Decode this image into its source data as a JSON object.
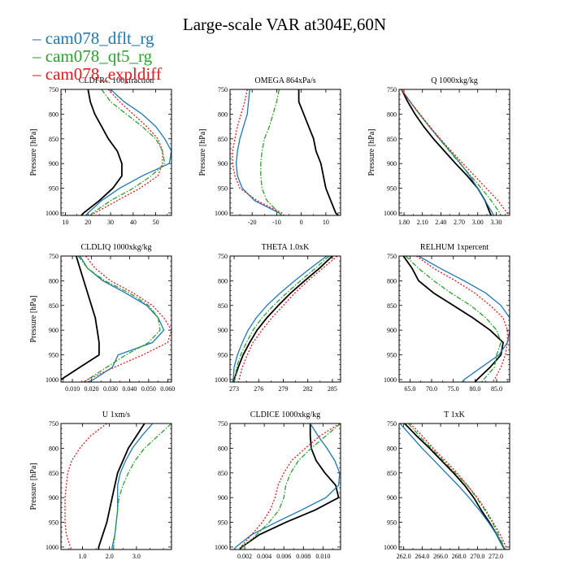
{
  "figure": {
    "title": "Large-scale VAR at304E,60N"
  },
  "legend": [
    {
      "name": "cam078_dflt_rg",
      "color": "#1f77b4",
      "dash": "solid"
    },
    {
      "name": "cam078_qt5_rg",
      "color": "#2ca02c",
      "dash": "dashdot"
    },
    {
      "name": "cam078_expldiff",
      "color": "#e31a1c",
      "dash": "dotted"
    }
  ],
  "colors": {
    "reference": "#000000",
    "cam078_dflt_rg": "#1f77b4",
    "cam078_qt5_rg": "#2ca02c",
    "cam078_expldiff": "#e31a1c"
  },
  "chart_data": [
    {
      "type": "line",
      "title": "CLDFRC 100xfraction",
      "ylabel": "Pressure [hPa]",
      "xlabel": "",
      "xlim": [
        8,
        57
      ],
      "ylim": [
        1005,
        750
      ],
      "yticks": [
        750,
        800,
        850,
        900,
        950,
        1000
      ],
      "xticks": [
        10,
        20,
        30,
        40,
        50
      ],
      "xtick_labels": [
        "10",
        "20",
        "30",
        "40",
        "50"
      ],
      "pressure": [
        750,
        775,
        800,
        825,
        850,
        875,
        900,
        925,
        950,
        975,
        1000,
        1005
      ],
      "series": [
        {
          "name": "",
          "values": [
            20,
            21,
            23,
            26,
            29,
            33,
            35,
            35,
            31,
            25,
            18,
            17
          ]
        },
        {
          "name": "cam078_dflt_rg",
          "values": [
            30,
            36,
            44,
            50,
            54,
            57,
            56,
            44,
            34,
            26,
            20,
            19
          ]
        },
        {
          "name": "cam078_qt5_rg",
          "values": [
            26,
            30,
            37,
            44,
            50,
            53,
            54,
            48,
            40,
            30,
            22,
            21
          ]
        },
        {
          "name": "cam078_expldiff",
          "values": [
            29,
            34,
            40,
            46,
            51,
            53,
            53,
            51,
            43,
            33,
            23,
            21
          ]
        }
      ]
    },
    {
      "type": "line",
      "title": "OMEGA  864xPa/s",
      "ylabel": "Pressure [hPa]",
      "xlabel": "",
      "xlim": [
        -29,
        16
      ],
      "ylim": [
        1005,
        750
      ],
      "yticks": [
        750,
        800,
        850,
        900,
        950,
        1000
      ],
      "xticks": [
        -20,
        -10,
        0,
        10
      ],
      "xtick_labels": [
        "-20",
        "-10",
        "0",
        "10"
      ],
      "pressure": [
        750,
        775,
        800,
        825,
        850,
        875,
        900,
        925,
        950,
        975,
        1000,
        1005
      ],
      "series": [
        {
          "name": "",
          "values": [
            -1,
            -1,
            1,
            3,
            5,
            6,
            8,
            9,
            10,
            12,
            14,
            15
          ]
        },
        {
          "name": "cam078_dflt_rg",
          "values": [
            -21,
            -21.5,
            -22,
            -23.5,
            -25,
            -26,
            -26.5,
            -26,
            -24,
            -19,
            -9,
            -8
          ]
        },
        {
          "name": "cam078_qt5_rg",
          "values": [
            -9,
            -10,
            -11.5,
            -13,
            -15,
            -16,
            -16.5,
            -16.5,
            -16,
            -14,
            -9,
            -8
          ]
        },
        {
          "name": "cam078_expldiff",
          "values": [
            -22,
            -23,
            -24.5,
            -26,
            -27,
            -28,
            -28,
            -27,
            -25,
            -18,
            -8,
            -7
          ]
        }
      ]
    },
    {
      "type": "line",
      "title": "Q  1000xkg/kg",
      "ylabel": "Pressure [hPa]",
      "xlabel": "",
      "xlim": [
        1.72,
        3.52
      ],
      "ylim": [
        1005,
        750
      ],
      "yticks": [
        750,
        800,
        850,
        900,
        950,
        1000
      ],
      "xticks": [
        1.8,
        2.1,
        2.4,
        2.7,
        3.0,
        3.3
      ],
      "xtick_labels": [
        "1.80",
        "2.10",
        "2.40",
        "2.70",
        "3.00",
        "3.30"
      ],
      "pressure": [
        750,
        775,
        800,
        825,
        850,
        875,
        900,
        925,
        950,
        975,
        1000,
        1005
      ],
      "series": [
        {
          "name": "",
          "values": [
            1.76,
            1.86,
            1.98,
            2.12,
            2.28,
            2.46,
            2.64,
            2.83,
            3.0,
            3.12,
            3.2,
            3.22
          ]
        },
        {
          "name": "cam078_dflt_rg",
          "values": [
            1.76,
            1.9,
            2.05,
            2.21,
            2.38,
            2.55,
            2.72,
            2.87,
            3.0,
            3.12,
            3.24,
            3.26
          ]
        },
        {
          "name": "cam078_qt5_rg",
          "values": [
            1.76,
            1.9,
            2.05,
            2.21,
            2.37,
            2.54,
            2.71,
            2.89,
            3.06,
            3.22,
            3.36,
            3.38
          ]
        },
        {
          "name": "cam078_expldiff",
          "values": [
            1.75,
            1.9,
            2.06,
            2.22,
            2.39,
            2.57,
            2.76,
            2.95,
            3.14,
            3.33,
            3.48,
            3.5
          ]
        }
      ]
    },
    {
      "type": "line",
      "title": "CLDLIQ  1000xkg/kg",
      "ylabel": "Pressure [hPa]",
      "xlabel": "",
      "xlim": [
        0.004,
        0.062
      ],
      "ylim": [
        1005,
        750
      ],
      "yticks": [
        750,
        800,
        850,
        900,
        950,
        1000
      ],
      "xticks": [
        0.01,
        0.02,
        0.03,
        0.04,
        0.05,
        0.06
      ],
      "xtick_labels": [
        "0.010",
        "0.020",
        "0.030",
        "0.040",
        "0.050",
        "0.060"
      ],
      "pressure": [
        750,
        775,
        800,
        825,
        850,
        875,
        900,
        925,
        950,
        975,
        1000,
        1005
      ],
      "series": [
        {
          "name": "",
          "values": [
            0.012,
            0.014,
            0.016,
            0.018,
            0.02,
            0.022,
            0.023,
            0.024,
            0.024,
            0.014,
            0.004,
            0.003
          ]
        },
        {
          "name": "cam078_dflt_rg",
          "values": [
            0.014,
            0.018,
            0.026,
            0.038,
            0.049,
            0.055,
            0.058,
            0.052,
            0.034,
            0.031,
            0.021,
            0.018
          ]
        },
        {
          "name": "cam078_qt5_rg",
          "values": [
            0.013,
            0.018,
            0.027,
            0.04,
            0.05,
            0.055,
            0.056,
            0.05,
            0.038,
            0.028,
            0.018,
            0.016
          ]
        },
        {
          "name": "cam078_expldiff",
          "values": [
            0.017,
            0.022,
            0.03,
            0.042,
            0.052,
            0.058,
            0.062,
            0.06,
            0.047,
            0.032,
            0.018,
            0.016
          ]
        }
      ]
    },
    {
      "type": "line",
      "title": "THETA  1.0xK",
      "ylabel": "",
      "xlabel": "",
      "xlim": [
        272.5,
        286
      ],
      "ylim": [
        1005,
        750
      ],
      "yticks": [
        750,
        800,
        850,
        900,
        950,
        1000
      ],
      "xticks": [
        273,
        276,
        279,
        282,
        285
      ],
      "xtick_labels": [
        "273",
        "276",
        "279",
        "282",
        "285"
      ],
      "pressure": [
        750,
        775,
        800,
        825,
        850,
        875,
        900,
        925,
        950,
        975,
        1000,
        1005
      ],
      "series": [
        {
          "name": "",
          "values": [
            285.0,
            283.4,
            281.6,
            279.9,
            278.4,
            277.0,
            275.8,
            274.9,
            274.1,
            273.5,
            273.0,
            272.9
          ]
        },
        {
          "name": "cam078_dflt_rg",
          "values": [
            284.3,
            282.3,
            280.4,
            278.6,
            277.0,
            275.7,
            274.7,
            274.0,
            273.4,
            273.0,
            272.9,
            272.8
          ]
        },
        {
          "name": "cam078_qt5_rg",
          "values": [
            284.6,
            282.9,
            281.1,
            279.4,
            277.8,
            276.4,
            275.3,
            274.5,
            273.8,
            273.3,
            273.1,
            273.0
          ]
        },
        {
          "name": "cam078_expldiff",
          "values": [
            285.6,
            283.8,
            282.0,
            280.4,
            279.0,
            277.6,
            276.4,
            275.3,
            274.6,
            274.0,
            273.6,
            273.5
          ]
        }
      ]
    },
    {
      "type": "line",
      "title": "RELHUM  1xpercent",
      "ylabel": "",
      "xlabel": "",
      "xlim": [
        62.5,
        88
      ],
      "ylim": [
        1005,
        750
      ],
      "yticks": [
        750,
        800,
        850,
        900,
        950,
        1000
      ],
      "xticks": [
        65,
        70,
        75,
        80,
        85
      ],
      "xtick_labels": [
        "65.0",
        "70.0",
        "75.0",
        "80.0",
        "85.0"
      ],
      "pressure": [
        750,
        775,
        800,
        825,
        850,
        875,
        900,
        925,
        950,
        975,
        1000,
        1005
      ],
      "series": [
        {
          "name": "",
          "values": [
            63.5,
            65.5,
            67.0,
            70.5,
            75.0,
            79.5,
            83.5,
            86.5,
            86.0,
            83.5,
            80.5,
            80.0
          ]
        },
        {
          "name": "cam078_dflt_rg",
          "values": [
            67.0,
            72.0,
            77.5,
            82.5,
            86.0,
            88.0,
            88.0,
            87.5,
            85.5,
            81.5,
            77.5,
            77.0
          ]
        },
        {
          "name": "cam078_qt5_rg",
          "values": [
            64.0,
            67.0,
            70.5,
            74.5,
            79.0,
            82.5,
            85.0,
            86.0,
            85.0,
            84.5,
            82.0,
            81.5
          ]
        },
        {
          "name": "cam078_expldiff",
          "values": [
            66.5,
            70.5,
            75.5,
            80.0,
            83.5,
            86.5,
            87.5,
            87.5,
            87.0,
            86.0,
            84.5,
            84.0
          ]
        }
      ]
    },
    {
      "type": "line",
      "title": "U  1xm/s",
      "ylabel": "Pressure [hPa]",
      "xlabel": "",
      "xlim": [
        0.2,
        4.3
      ],
      "ylim": [
        1005,
        750
      ],
      "yticks": [
        750,
        800,
        850,
        900,
        950,
        1000
      ],
      "xticks": [
        1.0,
        2.0,
        3.0
      ],
      "xtick_labels": [
        "1.0",
        "2.0",
        "3.0"
      ],
      "pressure": [
        750,
        775,
        800,
        825,
        850,
        875,
        900,
        925,
        950,
        975,
        1000,
        1005
      ],
      "series": [
        {
          "name": "",
          "values": [
            3.3,
            3.0,
            2.7,
            2.5,
            2.3,
            2.2,
            2.1,
            2.0,
            1.9,
            1.75,
            1.6,
            1.6
          ]
        },
        {
          "name": "cam078_dflt_rg",
          "values": [
            3.6,
            3.2,
            2.85,
            2.6,
            2.4,
            2.3,
            2.3,
            2.3,
            2.25,
            2.2,
            2.1,
            2.1
          ]
        },
        {
          "name": "cam078_qt5_rg",
          "values": [
            4.3,
            3.8,
            3.3,
            2.95,
            2.7,
            2.5,
            2.35,
            2.3,
            2.25,
            2.2,
            2.15,
            2.15
          ]
        },
        {
          "name": "cam078_expldiff",
          "values": [
            1.9,
            1.3,
            0.9,
            0.6,
            0.45,
            0.4,
            0.35,
            0.35,
            0.35,
            0.4,
            0.55,
            0.6
          ]
        }
      ]
    },
    {
      "type": "line",
      "title": "CLDICE  1000xkg/kg",
      "ylabel": "",
      "xlabel": "",
      "xlim": [
        0.0005,
        0.0118
      ],
      "ylim": [
        1005,
        750
      ],
      "yticks": [
        750,
        800,
        850,
        900,
        950,
        1000
      ],
      "xticks": [
        0.002,
        0.004,
        0.006,
        0.008,
        0.01
      ],
      "xtick_labels": [
        "0.002",
        "0.004",
        "0.006",
        "0.008",
        "0.010"
      ],
      "pressure": [
        750,
        775,
        800,
        825,
        850,
        875,
        900,
        925,
        950,
        975,
        1000,
        1005
      ],
      "series": [
        {
          "name": "",
          "values": [
            0.0087,
            0.0087,
            0.0088,
            0.0093,
            0.0102,
            0.0113,
            0.0116,
            0.0092,
            0.0062,
            0.0035,
            0.0017,
            0.0015
          ]
        },
        {
          "name": "cam078_dflt_rg",
          "values": [
            0.0087,
            0.0095,
            0.0104,
            0.0112,
            0.0117,
            0.0116,
            0.0103,
            0.0078,
            0.0052,
            0.0027,
            0.0011,
            0.0009
          ]
        },
        {
          "name": "cam078_qt5_rg",
          "values": [
            0.0118,
            0.0103,
            0.0088,
            0.0075,
            0.0067,
            0.0062,
            0.006,
            0.0055,
            0.0045,
            0.0032,
            0.0018,
            0.0015
          ]
        },
        {
          "name": "cam078_expldiff",
          "values": [
            0.0117,
            0.0097,
            0.0082,
            0.0068,
            0.006,
            0.0054,
            0.0051,
            0.0046,
            0.0038,
            0.0027,
            0.0016,
            0.0014
          ]
        }
      ]
    },
    {
      "type": "line",
      "title": "T  1xK",
      "ylabel": "",
      "xlabel": "",
      "xlim": [
        261.5,
        273.5
      ],
      "ylim": [
        1005,
        750
      ],
      "yticks": [
        750,
        800,
        850,
        900,
        950,
        1000
      ],
      "xticks": [
        262,
        264,
        266,
        268,
        270,
        272
      ],
      "xtick_labels": [
        "262.0",
        "264.0",
        "266.0",
        "268.0",
        "270.0",
        "272.0"
      ],
      "pressure": [
        750,
        775,
        800,
        825,
        850,
        875,
        900,
        925,
        950,
        975,
        1000,
        1005
      ],
      "series": [
        {
          "name": "",
          "values": [
            262.1,
            263.4,
            264.8,
            266.1,
            267.4,
            268.6,
            269.6,
            270.4,
            271.3,
            272.1,
            272.8,
            273.0
          ]
        },
        {
          "name": "cam078_dflt_rg",
          "values": [
            261.6,
            262.8,
            264.0,
            265.3,
            266.6,
            267.9,
            269.1,
            270.2,
            271.2,
            272.1,
            272.8,
            273.0
          ]
        },
        {
          "name": "cam078_qt5_rg",
          "values": [
            262.5,
            263.7,
            265.0,
            266.3,
            267.6,
            268.9,
            269.9,
            270.8,
            271.6,
            272.3,
            272.9,
            273.0
          ]
        },
        {
          "name": "cam078_expldiff",
          "values": [
            262.7,
            264.0,
            265.2,
            266.5,
            267.8,
            268.9,
            270.0,
            270.9,
            271.7,
            272.5,
            273.1,
            273.2
          ]
        }
      ]
    }
  ]
}
